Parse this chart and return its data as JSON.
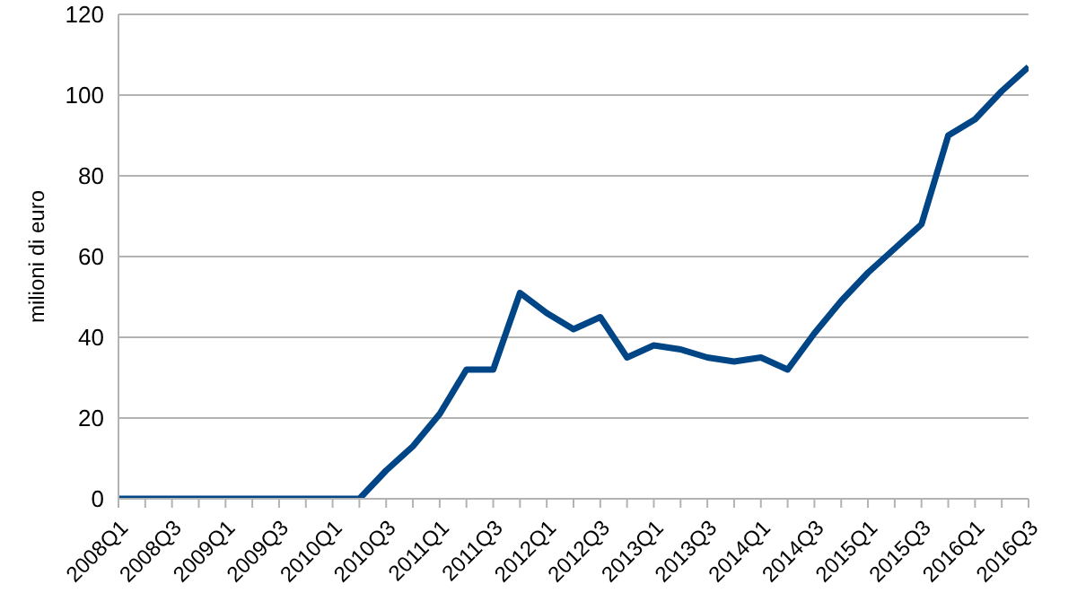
{
  "chart_data": {
    "type": "line",
    "ylabel": "milioni di euro",
    "categories": [
      "2008Q1",
      null,
      "2008Q3",
      null,
      "2009Q1",
      null,
      "2009Q3",
      null,
      "2010Q1",
      null,
      "2010Q3",
      null,
      "2011Q1",
      null,
      "2011Q3",
      null,
      "2012Q1",
      null,
      "2012Q3",
      null,
      "2013Q1",
      null,
      "2013Q3",
      null,
      "2014Q1",
      null,
      "2014Q3",
      null,
      "2015Q1",
      null,
      "2015Q3",
      null,
      "2016Q1",
      null,
      "2016Q3"
    ],
    "series": [
      {
        "color": "#004586",
        "values": [
          0,
          0,
          0,
          0,
          0,
          0,
          0,
          0,
          0,
          0,
          7,
          13,
          21,
          32,
          32,
          51,
          46,
          42,
          45,
          35,
          38,
          37,
          35,
          34,
          35,
          32,
          41,
          49,
          56,
          62,
          68,
          90,
          94,
          101,
          107
        ]
      }
    ],
    "ylim": [
      0,
      120
    ],
    "yticks": [
      0,
      20,
      40,
      60,
      80,
      100,
      120
    ],
    "grid": "y",
    "marker": "none",
    "line_style": "solid",
    "legend": false
  }
}
